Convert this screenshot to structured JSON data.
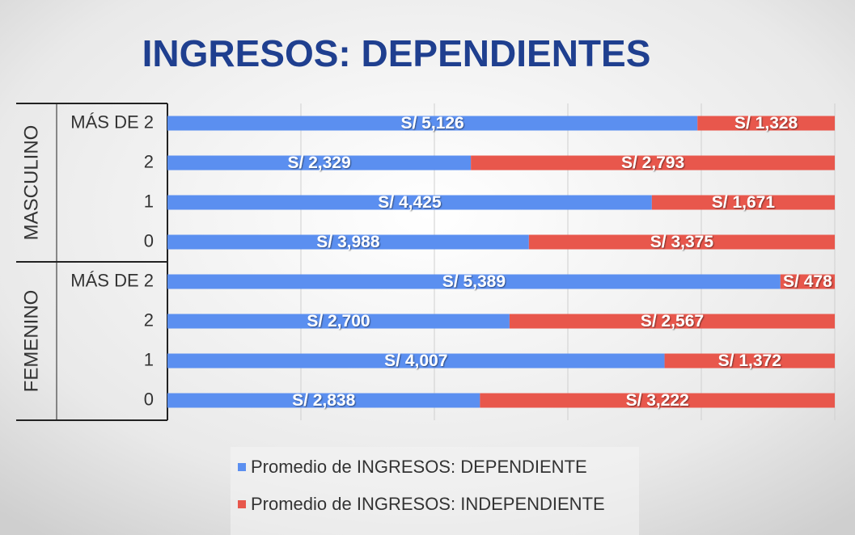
{
  "chart_data": {
    "type": "bar",
    "orientation": "horizontal",
    "stacking": "percent",
    "title": "INGRESOS: DEPENDIENTES",
    "groups": [
      {
        "name": "MASCULINO",
        "categories": [
          "MÁS DE 2",
          "2",
          "1",
          "0"
        ]
      },
      {
        "name": "FEMENINO",
        "categories": [
          "MÁS DE 2",
          "2",
          "1",
          "0"
        ]
      }
    ],
    "series": [
      {
        "name": "Promedio de INGRESOS: DEPENDIENTE",
        "color": "#5b8ff0",
        "values": [
          5126,
          2329,
          4425,
          3988,
          5389,
          2700,
          4007,
          2838
        ],
        "value_labels": [
          "S/ 5,126",
          "S/ 2,329",
          "S/ 4,425",
          "S/ 3,988",
          "S/ 5,389",
          "S/ 2,700",
          "S/ 4,007",
          "S/ 2,838"
        ]
      },
      {
        "name": "Promedio de INGRESOS: INDEPENDIENTE",
        "color": "#e8574c",
        "values": [
          1328,
          2793,
          1671,
          3375,
          478,
          2567,
          1372,
          3222
        ],
        "value_labels": [
          "S/ 1,328",
          "S/ 2,793",
          "S/ 1,671",
          "S/ 3,375",
          "S/ 478",
          "S/ 2,567",
          "S/ 1,372",
          "S/ 3,222"
        ]
      }
    ],
    "grid": true,
    "legend": "bottom"
  }
}
